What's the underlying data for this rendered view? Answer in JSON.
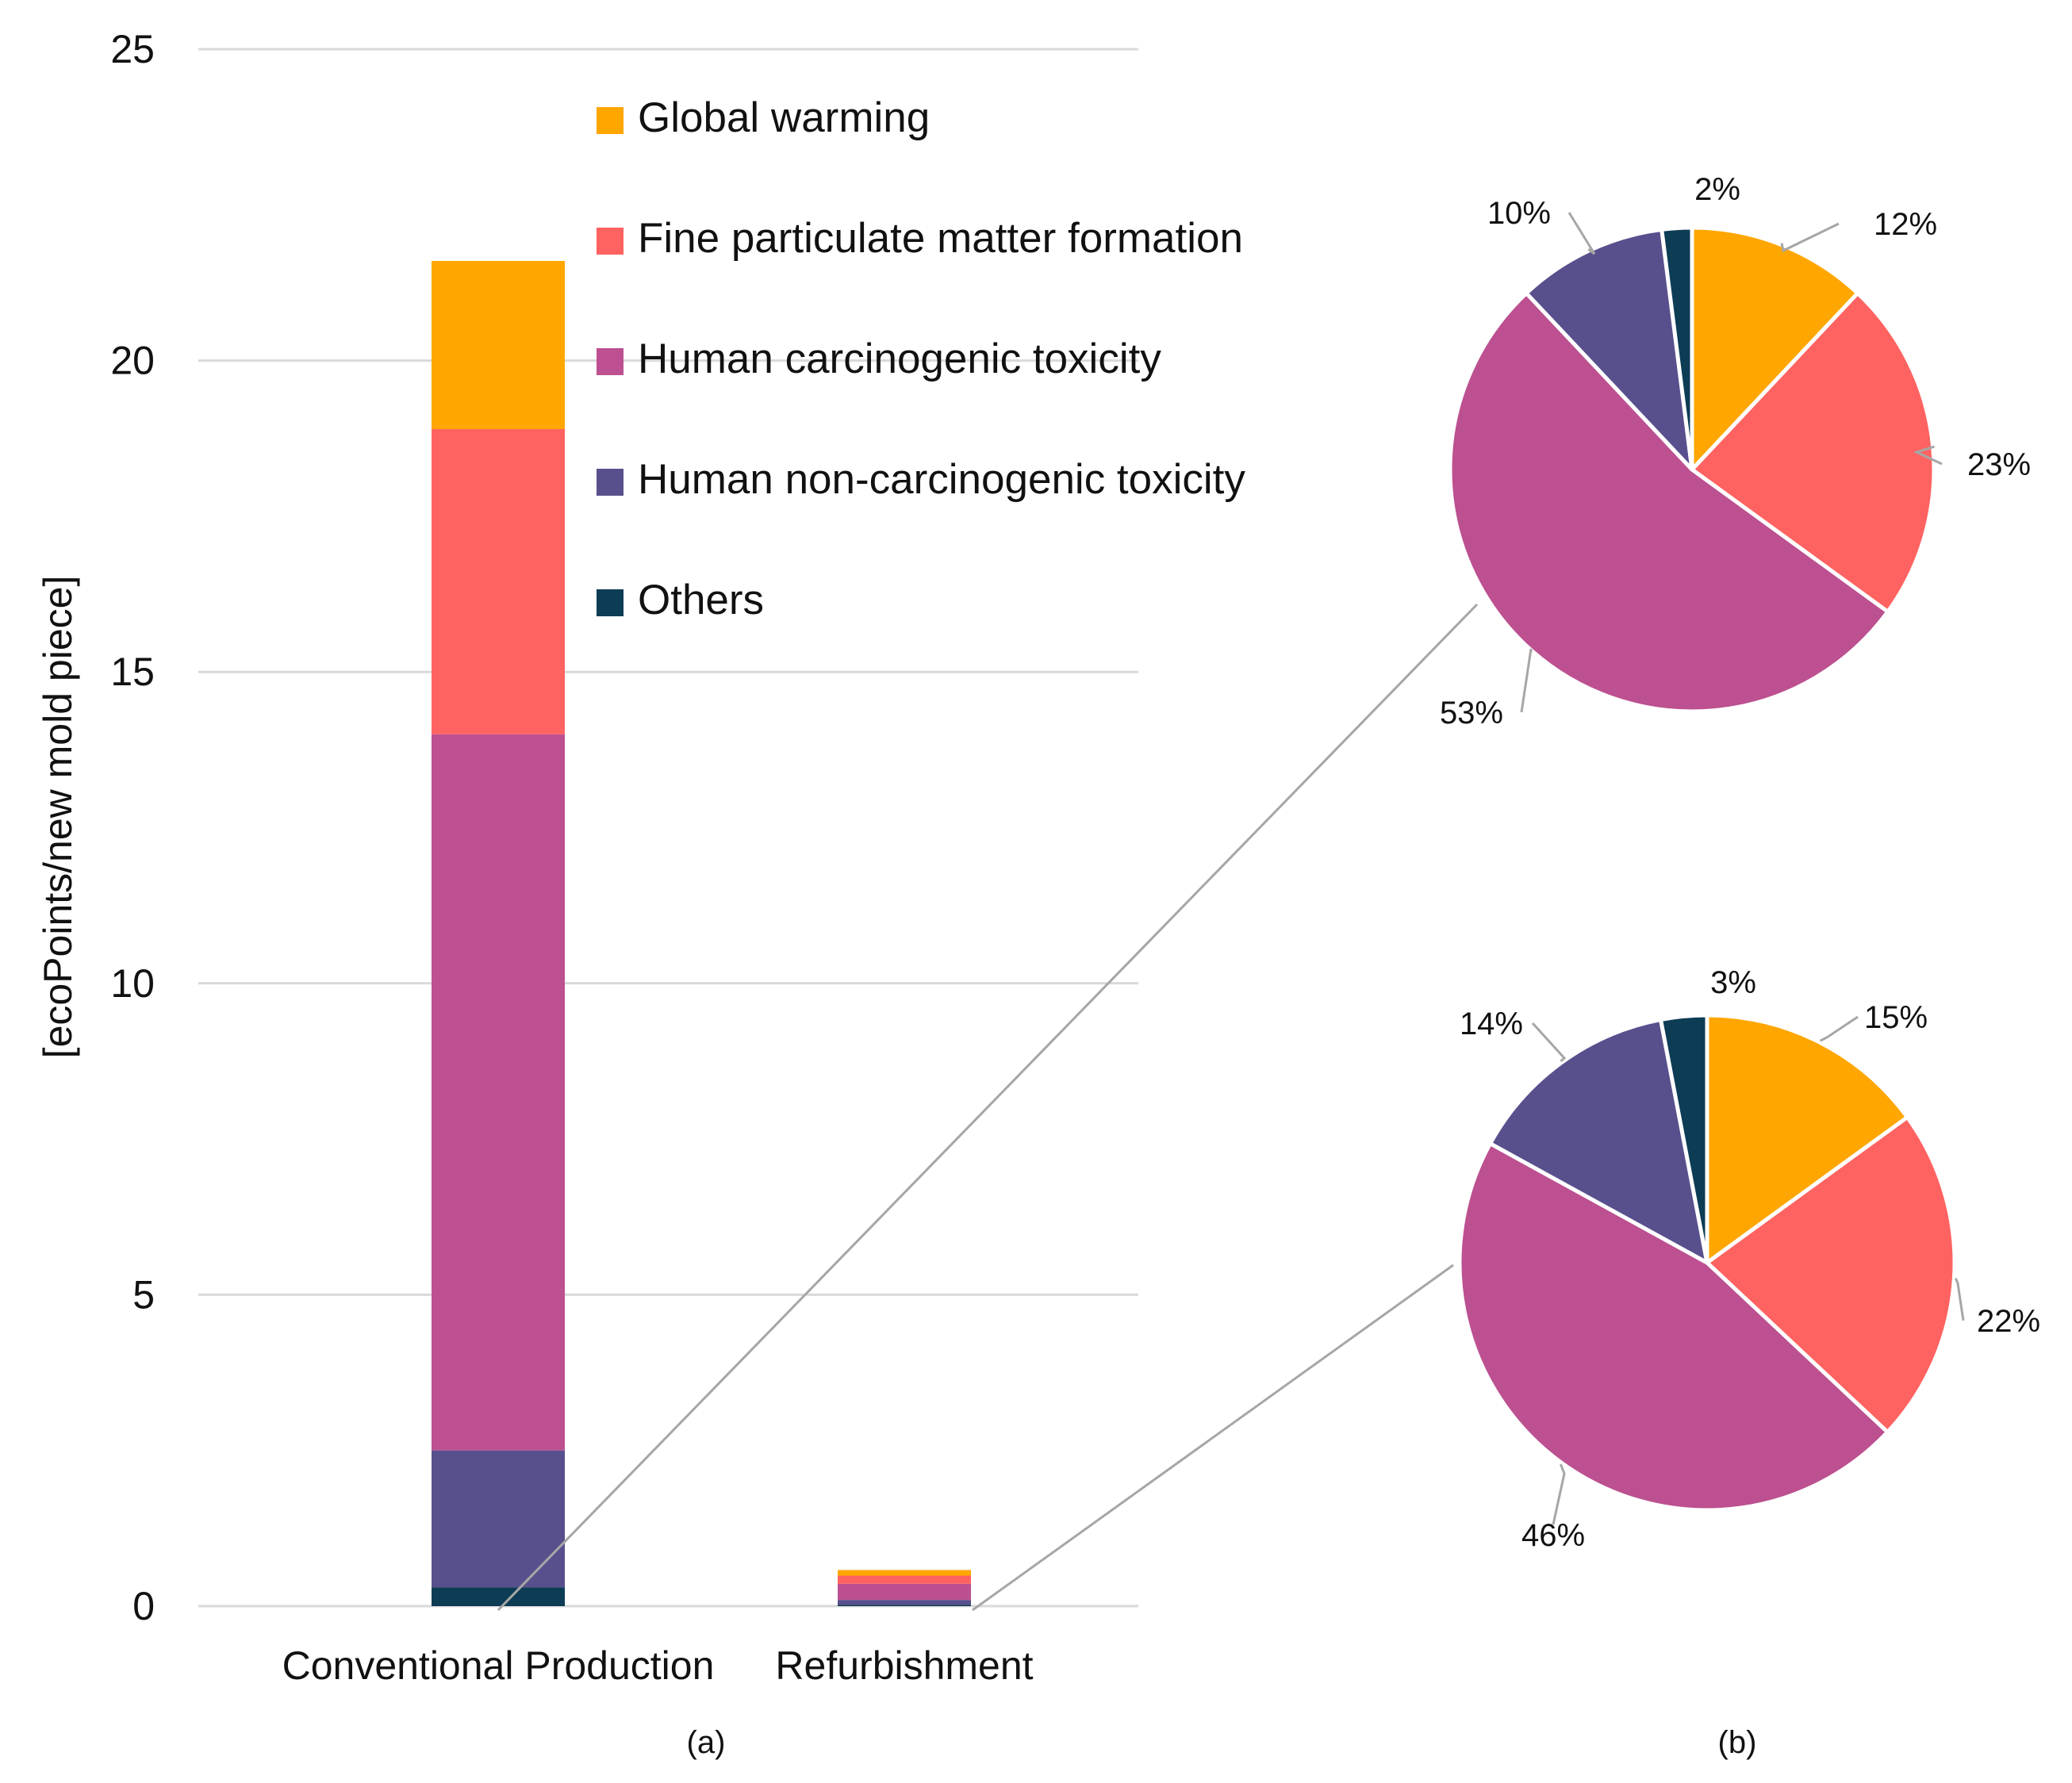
{
  "chart_data": [
    {
      "type": "bar",
      "stacked": true,
      "panel_label": "(a)",
      "ylabel": "[ecoPoints/new mold piece]",
      "ylim": [
        0,
        25
      ],
      "yticks": [
        "0",
        "5",
        "10",
        "15",
        "20",
        "25"
      ],
      "categories": [
        "Conventional Production",
        "Refurbishment"
      ],
      "series": [
        {
          "name": "Others",
          "color": "#0d3c55",
          "values": [
            0.3,
            0.02
          ]
        },
        {
          "name": "Human non-carcinogenic toxicity",
          "color": "#58508d",
          "values": [
            2.2,
            0.08
          ]
        },
        {
          "name": "Human carcinogenic toxicity",
          "color": "#bc5090",
          "values": [
            11.5,
            0.26
          ]
        },
        {
          "name": "Fine particulate matter formation",
          "color": "#ff6361",
          "values": [
            4.9,
            0.13
          ]
        },
        {
          "name": "Global warming",
          "color": "#ffa600",
          "values": [
            2.7,
            0.09
          ]
        }
      ],
      "legend": [
        {
          "name": "Global warming",
          "color": "#ffa600"
        },
        {
          "name": "Fine particulate matter formation",
          "color": "#ff6361"
        },
        {
          "name": "Human carcinogenic toxicity",
          "color": "#bc5090"
        },
        {
          "name": "Human non-carcinogenic toxicity",
          "color": "#58508d"
        },
        {
          "name": "Others",
          "color": "#0d3c55"
        }
      ],
      "legend_position": "top-center"
    },
    {
      "type": "pie",
      "panel_label": "(b)",
      "source_category": "Conventional Production",
      "slices": [
        {
          "name": "Global warming",
          "value": 12,
          "label": "12%",
          "color": "#ffa600"
        },
        {
          "name": "Fine particulate matter formation",
          "value": 23,
          "label": "23%",
          "color": "#ff6361"
        },
        {
          "name": "Human carcinogenic toxicity",
          "value": 53,
          "label": "53%",
          "color": "#bc5090"
        },
        {
          "name": "Human non-carcinogenic toxicity",
          "value": 10,
          "label": "10%",
          "color": "#58508d"
        },
        {
          "name": "Others",
          "value": 2,
          "label": "2%",
          "color": "#0d3c55"
        }
      ]
    },
    {
      "type": "pie",
      "source_category": "Refurbishment",
      "slices": [
        {
          "name": "Global warming",
          "value": 15,
          "label": "15%",
          "color": "#ffa600"
        },
        {
          "name": "Fine particulate matter formation",
          "value": 22,
          "label": "22%",
          "color": "#ff6361"
        },
        {
          "name": "Human carcinogenic toxicity",
          "value": 46,
          "label": "46%",
          "color": "#bc5090"
        },
        {
          "name": "Human non-carcinogenic toxicity",
          "value": 14,
          "label": "14%",
          "color": "#58508d"
        },
        {
          "name": "Others",
          "value": 3,
          "label": "3%",
          "color": "#0d3c55"
        }
      ]
    }
  ]
}
